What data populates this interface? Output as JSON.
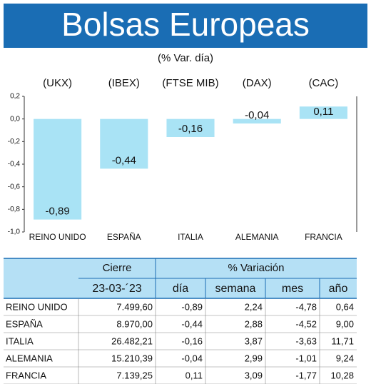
{
  "chart_data": {
    "type": "bar",
    "title": "Bolsas Europeas",
    "subtitle": "(% Var. día)",
    "tickers": [
      "(UKX)",
      "(IBEX)",
      "(FTSE MIB)",
      "(DAX)",
      "(CAC)"
    ],
    "categories": [
      "REINO UNIDO",
      "ESPAÑA",
      "ITALIA",
      "ALEMANIA",
      "FRANCIA"
    ],
    "values": [
      -0.89,
      -0.44,
      -0.16,
      -0.04,
      0.11
    ],
    "value_labels": [
      "-0,89",
      "-0,44",
      "-0,16",
      "-0,04",
      "0,11"
    ],
    "color": "#a9e3f5",
    "ylim": [
      -1.0,
      0.2
    ],
    "yticks": [
      {
        "value": 0.2,
        "label": "0,2"
      },
      {
        "value": 0.0,
        "label": "0,0"
      },
      {
        "value": -0.2,
        "label": "-0,2"
      },
      {
        "value": -0.4,
        "label": "-0,4"
      },
      {
        "value": -0.6,
        "label": "-0,6"
      },
      {
        "value": -0.8,
        "label": "-0,8"
      },
      {
        "value": -1.0,
        "label": "-1,0"
      }
    ]
  },
  "table": {
    "header_row1": [
      "Cierre",
      "% Variación"
    ],
    "header_row2": [
      "23-03-´23",
      "día",
      "semana",
      "mes",
      "año"
    ],
    "rows": [
      [
        "REINO UNIDO",
        "7.499,60",
        "-0,89",
        "2,24",
        "-4,78",
        "0,64"
      ],
      [
        "ESPAÑA",
        "8.970,00",
        "-0,44",
        "2,88",
        "-4,52",
        "9,00"
      ],
      [
        "ITALIA",
        "26.482,21",
        "-0,16",
        "3,87",
        "-3,63",
        "11,71"
      ],
      [
        "ALEMANIA",
        "15.210,39",
        "-0,04",
        "2,99",
        "-1,01",
        "9,24"
      ],
      [
        "FRANCIA",
        "7.139,25",
        "0,11",
        "3,09",
        "-1,77",
        "10,28"
      ]
    ]
  }
}
